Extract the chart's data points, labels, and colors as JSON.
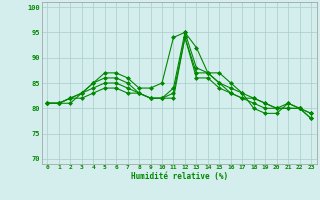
{
  "x": [
    0,
    1,
    2,
    3,
    4,
    5,
    6,
    7,
    8,
    9,
    10,
    11,
    12,
    13,
    14,
    15,
    16,
    17,
    18,
    19,
    20,
    21,
    22,
    23
  ],
  "line1": [
    81,
    81,
    81,
    83,
    85,
    87,
    87,
    86,
    84,
    84,
    85,
    94,
    95,
    92,
    87,
    87,
    85,
    83,
    80,
    79,
    79,
    81,
    80,
    78
  ],
  "line2": [
    81,
    81,
    82,
    83,
    85,
    86,
    86,
    85,
    83,
    82,
    82,
    84,
    95,
    88,
    87,
    85,
    83,
    82,
    81,
    80,
    80,
    81,
    80,
    78
  ],
  "line3": [
    81,
    81,
    82,
    83,
    84,
    85,
    85,
    84,
    83,
    82,
    82,
    83,
    94,
    87,
    87,
    85,
    84,
    83,
    82,
    81,
    80,
    80,
    80,
    79
  ],
  "line4": [
    81,
    81,
    82,
    82,
    83,
    84,
    84,
    83,
    83,
    82,
    82,
    82,
    94,
    86,
    86,
    84,
    83,
    82,
    82,
    81,
    80,
    80,
    80,
    79
  ],
  "ylabel_ticks": [
    70,
    75,
    80,
    85,
    90,
    95,
    100
  ],
  "xlabel": "Humidité relative (%)",
  "xlim": [
    -0.5,
    23.5
  ],
  "ylim": [
    69,
    101
  ],
  "bg_color": "#d4eeee",
  "grid_color": "#aacccc",
  "line_color": "#008800",
  "marker": "D",
  "markersize": 2.0,
  "linewidth": 0.8
}
